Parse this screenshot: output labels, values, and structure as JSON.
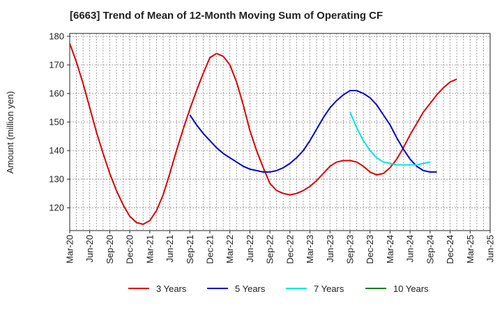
{
  "chart_data": {
    "type": "line",
    "title": "[6663]  Trend of Mean of 12-Month Moving Sum of Operating CF",
    "xlabel": "",
    "ylabel": "Amount (million yen)",
    "ylim": [
      112,
      181
    ],
    "yticks": [
      120,
      130,
      140,
      150,
      160,
      170,
      180
    ],
    "x_start": "2020-03",
    "x_end": "2025-06",
    "xtick_labels": [
      "Mar-20",
      "Jun-20",
      "Sep-20",
      "Dec-20",
      "Mar-21",
      "Jun-21",
      "Sep-21",
      "Dec-21",
      "Mar-22",
      "Jun-22",
      "Sep-22",
      "Dec-22",
      "Mar-23",
      "Jun-23",
      "Sep-23",
      "Dec-23",
      "Mar-24",
      "Jun-24",
      "Sep-24",
      "Dec-24",
      "Mar-25",
      "Jun-25"
    ],
    "grid": true,
    "legend_position": "bottom",
    "series": [
      {
        "name": "3 Years",
        "color": "#dd0000",
        "start": "2020-03",
        "values": [
          177.5,
          171,
          163.5,
          155,
          146.5,
          139,
          132,
          126,
          121,
          117,
          114.8,
          114.2,
          115.5,
          119,
          124.5,
          132,
          140,
          147.5,
          154.5,
          161,
          167,
          172.5,
          174,
          173,
          170,
          164,
          156,
          147,
          140,
          134,
          128.5,
          126,
          125,
          124.5,
          125,
          126,
          127.5,
          129.5,
          132,
          134.5,
          136,
          136.5,
          136.5,
          136,
          134.5,
          132.5,
          131.5,
          132,
          134,
          137,
          141,
          145.5,
          149.5,
          153.5,
          156.5,
          159.5,
          162,
          164,
          165
        ]
      },
      {
        "name": "5 Years",
        "color": "#0000cc",
        "start": "2021-09",
        "values": [
          152.5,
          149,
          146,
          143.5,
          141,
          139,
          137.5,
          136,
          134.5,
          133.5,
          133,
          132.5,
          132.5,
          133,
          134,
          135.5,
          137.5,
          140,
          143.5,
          147.5,
          151.5,
          155,
          157.5,
          159.5,
          161,
          161,
          160,
          158.5,
          156,
          152.5,
          149,
          144.5,
          140.5,
          137,
          134.5,
          133,
          132.5,
          132.5
        ]
      },
      {
        "name": "7 Years",
        "color": "#00e5e5",
        "start": "2023-09",
        "values": [
          153.5,
          148,
          143.5,
          140,
          137.5,
          136,
          135.5,
          135,
          135,
          135,
          135,
          135.5,
          136
        ]
      },
      {
        "name": "10 Years",
        "color": "#008000",
        "start": "2020-03",
        "values": []
      }
    ]
  }
}
